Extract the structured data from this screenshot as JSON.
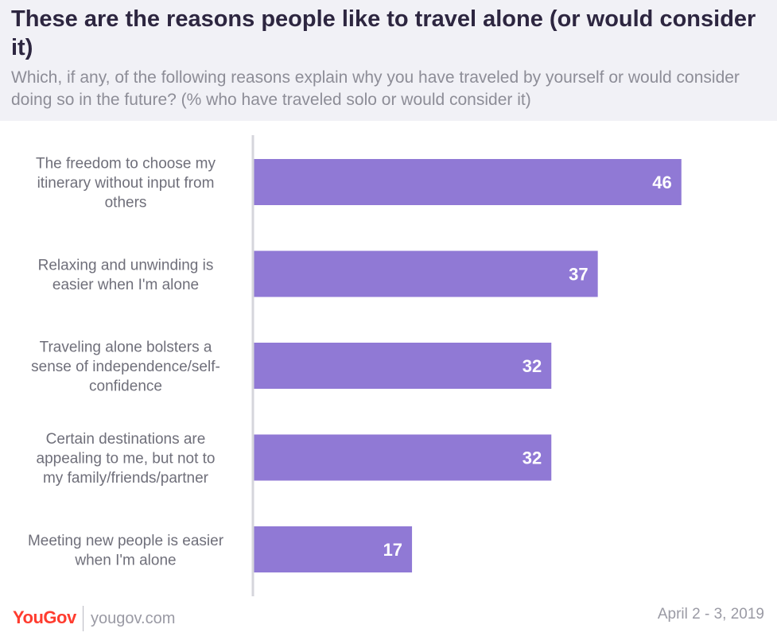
{
  "header": {
    "title": "These are the reasons people like to travel alone (or would consider it)",
    "subtitle": "Which, if any, of the following reasons explain why you have traveled by yourself or would consider doing so in the future? (% who have traveled solo or would consider it)"
  },
  "chart_data": {
    "type": "bar",
    "orientation": "horizontal",
    "categories": [
      [
        "The freedom to choose my",
        "itinerary without input from",
        "others"
      ],
      [
        "Relaxing and unwinding is",
        "easier when I'm alone"
      ],
      [
        "Traveling alone bolsters a",
        "sense of independence/self-",
        "confidence"
      ],
      [
        "Certain destinations are",
        "appealing to me, but not to",
        "my family/friends/partner"
      ],
      [
        "Meeting new people is easier",
        "when I'm alone"
      ]
    ],
    "values": [
      46,
      37,
      32,
      32,
      17
    ],
    "xlim": [
      0,
      50
    ],
    "bar_color": "#9079d5",
    "label_color": "#ffffff",
    "grid": false
  },
  "footer": {
    "logo": "YouGov",
    "site": "yougov.com",
    "date": "April 2 - 3, 2019"
  }
}
